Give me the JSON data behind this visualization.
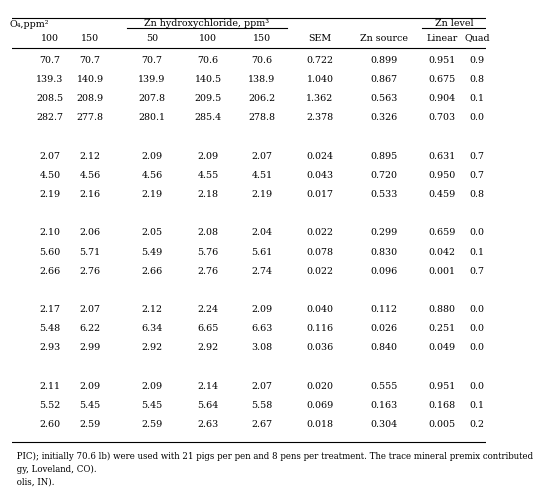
{
  "header_row1_left": "O₄,ppm²",
  "header_row1_center": "Zn hydroxychloride, ppm³",
  "header_row1_right": "Zn level",
  "header_row2": [
    "100",
    "150",
    "50",
    "100",
    "150",
    "SEM",
    "Zn source",
    "Linear",
    "Quad"
  ],
  "rows": [
    [
      "70.7",
      "70.7",
      "70.7",
      "70.6",
      "70.6",
      "0.722",
      "0.899",
      "0.951",
      "0.9"
    ],
    [
      "139.3",
      "140.9",
      "139.9",
      "140.5",
      "138.9",
      "1.040",
      "0.867",
      "0.675",
      "0.8"
    ],
    [
      "208.5",
      "208.9",
      "207.8",
      "209.5",
      "206.2",
      "1.362",
      "0.563",
      "0.904",
      "0.1"
    ],
    [
      "282.7",
      "277.8",
      "280.1",
      "285.4",
      "278.8",
      "2.378",
      "0.326",
      "0.703",
      "0.0"
    ],
    [
      "",
      "",
      "",
      "",
      "",
      "",
      "",
      "",
      ""
    ],
    [
      "2.07",
      "2.12",
      "2.09",
      "2.09",
      "2.07",
      "0.024",
      "0.895",
      "0.631",
      "0.7"
    ],
    [
      "4.50",
      "4.56",
      "4.56",
      "4.55",
      "4.51",
      "0.043",
      "0.720",
      "0.950",
      "0.7"
    ],
    [
      "2.19",
      "2.16",
      "2.19",
      "2.18",
      "2.19",
      "0.017",
      "0.533",
      "0.459",
      "0.8"
    ],
    [
      "",
      "",
      "",
      "",
      "",
      "",
      "",
      "",
      ""
    ],
    [
      "2.10",
      "2.06",
      "2.05",
      "2.08",
      "2.04",
      "0.022",
      "0.299",
      "0.659",
      "0.0"
    ],
    [
      "5.60",
      "5.71",
      "5.49",
      "5.76",
      "5.61",
      "0.078",
      "0.830",
      "0.042",
      "0.1"
    ],
    [
      "2.66",
      "2.76",
      "2.66",
      "2.76",
      "2.74",
      "0.022",
      "0.096",
      "0.001",
      "0.7"
    ],
    [
      "",
      "",
      "",
      "",
      "",
      "",
      "",
      "",
      ""
    ],
    [
      "2.17",
      "2.07",
      "2.12",
      "2.24",
      "2.09",
      "0.040",
      "0.112",
      "0.880",
      "0.0"
    ],
    [
      "5.48",
      "6.22",
      "6.34",
      "6.65",
      "6.63",
      "0.116",
      "0.026",
      "0.251",
      "0.0"
    ],
    [
      "2.93",
      "2.99",
      "2.92",
      "2.92",
      "3.08",
      "0.036",
      "0.840",
      "0.049",
      "0.0"
    ],
    [
      "",
      "",
      "",
      "",
      "",
      "",
      "",
      "",
      ""
    ],
    [
      "2.11",
      "2.09",
      "2.09",
      "2.14",
      "2.07",
      "0.020",
      "0.555",
      "0.951",
      "0.0"
    ],
    [
      "5.52",
      "5.45",
      "5.45",
      "5.64",
      "5.58",
      "0.069",
      "0.163",
      "0.168",
      "0.1"
    ],
    [
      "2.60",
      "2.59",
      "2.59",
      "2.63",
      "2.67",
      "0.018",
      "0.304",
      "0.005",
      "0.2"
    ]
  ],
  "footnotes": [
    " PIC); initially 70.6 lb) were used with 21 pigs per pen and 8 pens per treatment. The trace mineral premix contributed",
    " gy, Loveland, CO).",
    " olis, IN)."
  ],
  "background_color": "#ffffff",
  "text_color": "#000000",
  "font_size": 6.8,
  "footnote_font_size": 6.2
}
